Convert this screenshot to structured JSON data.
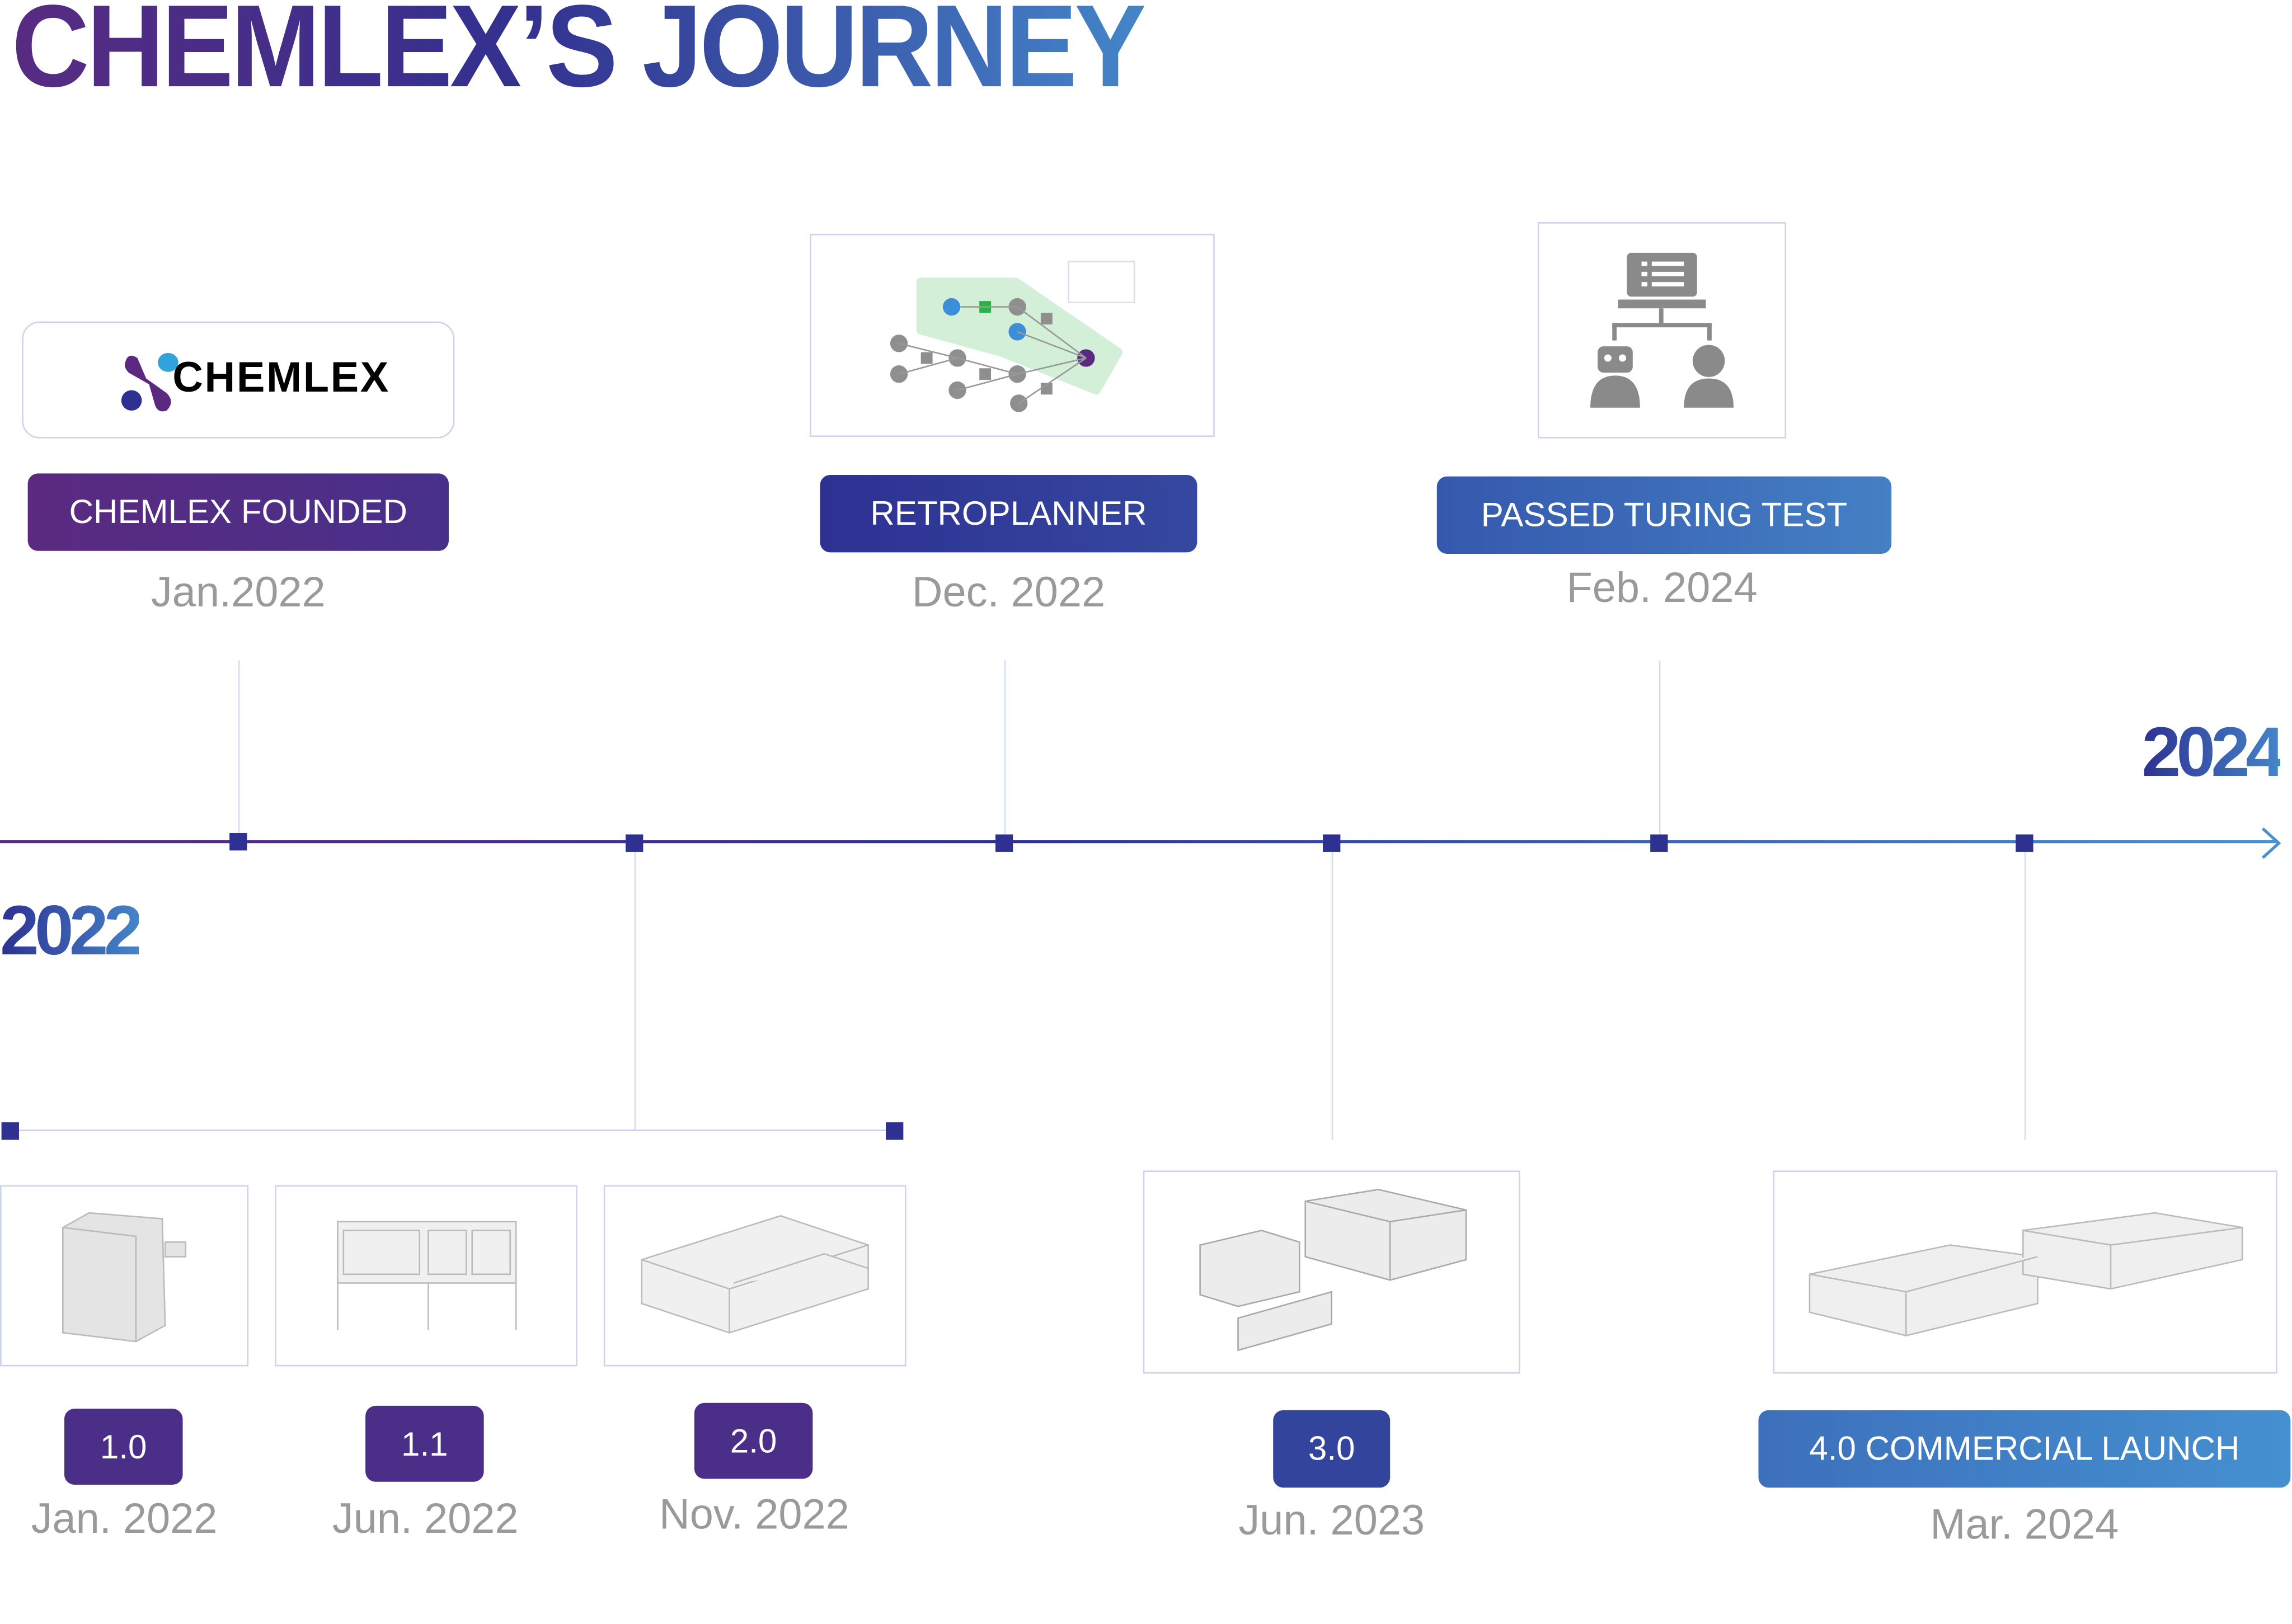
{
  "title": "CHEMLEX’S JOURNEY",
  "colors": {
    "purple": "#582b82",
    "navy": "#2e3192",
    "blue": "#4485c8",
    "date_gray": "#9a9a9a"
  },
  "timeline": {
    "start_year": "2022",
    "end_year": "2024"
  },
  "milestones_top": [
    {
      "label": "CHEMLEX FOUNDED",
      "date": "Jan.2022",
      "image": "chemlex-logo",
      "logo_text": "CHEMLEX"
    },
    {
      "label": "RETROPLANNER",
      "date": "Dec. 2022",
      "image": "retrosynthesis-graph"
    },
    {
      "label": "PASSED TURING TEST",
      "date": "Feb. 2024",
      "image": "robot-vs-human-icon"
    }
  ],
  "milestones_bottom": [
    {
      "label": "1.0",
      "date": "Jan. 2022",
      "image": "lab-machine-1.0"
    },
    {
      "label": "1.1",
      "date": "Jun. 2022",
      "image": "lab-bench-1.1"
    },
    {
      "label": "2.0",
      "date": "Nov. 2022",
      "image": "lab-system-2.0"
    },
    {
      "label": "3.0",
      "date": "Jun. 2023",
      "image": "lab-system-3.0"
    },
    {
      "label": "4.0 COMMERCIAL LAUNCH",
      "date": "Mar. 2024",
      "image": "lab-system-4.0"
    }
  ]
}
